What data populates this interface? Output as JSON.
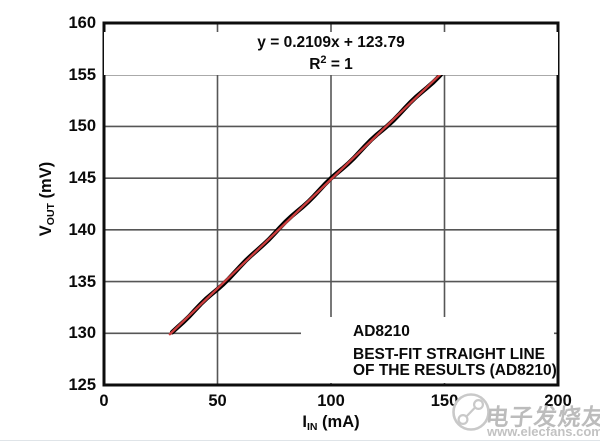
{
  "figure": {
    "equation_line1": "y = 0.2109x + 123.79",
    "r2_prefix": "R",
    "r2_sup": "2",
    "r2_suffix": " = 1"
  },
  "axes": {
    "y_label_main": "V",
    "y_label_sub": "OUT",
    "y_label_unit": " (mV)",
    "x_label_main": "I",
    "x_label_sub": "IN",
    "x_label_unit": " (mA)"
  },
  "legend": {
    "items": [
      {
        "label": "AD8210",
        "color": "#000000"
      },
      {
        "label": "BEST-FIT STRAIGHT LINE",
        "label2": "OF THE RESULTS (AD8210)",
        "color": "#cc3e3e"
      }
    ]
  },
  "watermark": {
    "brand": "电子发烧友",
    "url": "www.elecfans.com"
  },
  "colors": {
    "grid": "#565656",
    "border": "#0d0d0d",
    "measured_line": "#000000",
    "fit_line": "#cc3e3e",
    "watermark": "#c6c6c6"
  },
  "chart_data": {
    "type": "line",
    "title": "",
    "xlabel": "IIN (mA)",
    "ylabel": "VOUT (mV)",
    "xlim": [
      0,
      200
    ],
    "ylim": [
      125,
      160
    ],
    "xticks": [
      0,
      50,
      100,
      150,
      200
    ],
    "yticks": [
      125,
      130,
      135,
      140,
      145,
      150,
      155,
      160
    ],
    "grid": true,
    "legend_position": "lower right",
    "annotations": [
      "y = 0.2109x + 123.79",
      "R2 = 1"
    ],
    "fit": {
      "slope": 0.2109,
      "intercept": 123.79,
      "r_squared": 1,
      "x_range": [
        30,
        150
      ]
    },
    "series": [
      {
        "name": "AD8210",
        "color": "#000000",
        "x": [
          30,
          40,
          50,
          60,
          70,
          80,
          90,
          100,
          110,
          120,
          130,
          140,
          150
        ],
        "values": [
          130.1,
          132.2,
          134.3,
          136.4,
          138.6,
          140.7,
          142.8,
          144.9,
          147.0,
          149.1,
          151.2,
          153.3,
          155.4
        ]
      },
      {
        "name": "BEST-FIT STRAIGHT LINE OF THE RESULTS (AD8210)",
        "color": "#cc3e3e",
        "x": [
          30,
          150
        ],
        "values": [
          130.12,
          155.43
        ]
      }
    ]
  }
}
